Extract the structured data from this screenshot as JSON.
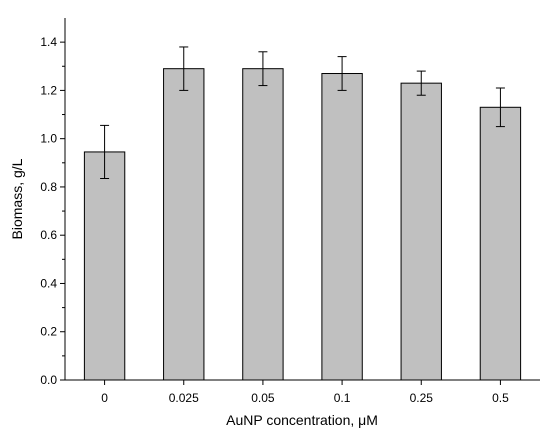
{
  "chart_data": {
    "type": "bar",
    "title": "",
    "xlabel": "AuNP concentration,  μM",
    "ylabel": "Biomass, g/L",
    "categories": [
      "0",
      "0.025",
      "0.05",
      "0.1",
      "0.25",
      "0.5"
    ],
    "values": [
      0.945,
      1.29,
      1.29,
      1.27,
      1.23,
      1.13
    ],
    "errors": [
      0.11,
      0.09,
      0.07,
      0.07,
      0.05,
      0.08
    ],
    "ylim": [
      0,
      1.5
    ],
    "yticks": [
      "0.0",
      "0.2",
      "0.4",
      "0.6",
      "0.8",
      "1.0",
      "1.2",
      "1.4"
    ],
    "grid": false,
    "legend": "none",
    "bar_color": "#c0c0c0"
  }
}
